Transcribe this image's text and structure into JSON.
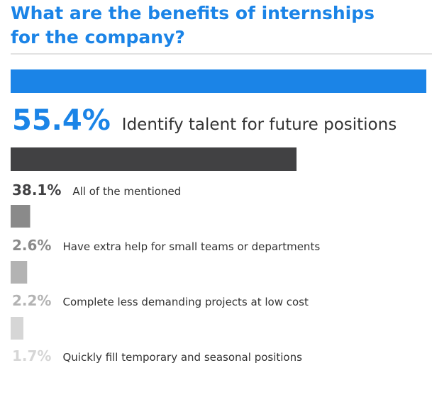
{
  "chart_data": {
    "type": "bar",
    "orientation": "horizontal",
    "title": "What are the benefits of internships for the company?",
    "categories": [
      "Identify talent for future positions",
      "All of the mentioned",
      "Have extra help for small teams or departments",
      "Complete less demanding projects at low cost",
      "Quickly fill temporary and seasonal positions"
    ],
    "values": [
      55.4,
      38.1,
      2.6,
      2.2,
      1.7
    ],
    "value_labels": [
      "55.4%",
      "38.1%",
      "2.6%",
      "2.2%",
      "1.7%"
    ],
    "colors": [
      "#1b84e7",
      "#414143",
      "#8a8a8a",
      "#b3b3b3",
      "#d6d6d6"
    ]
  }
}
